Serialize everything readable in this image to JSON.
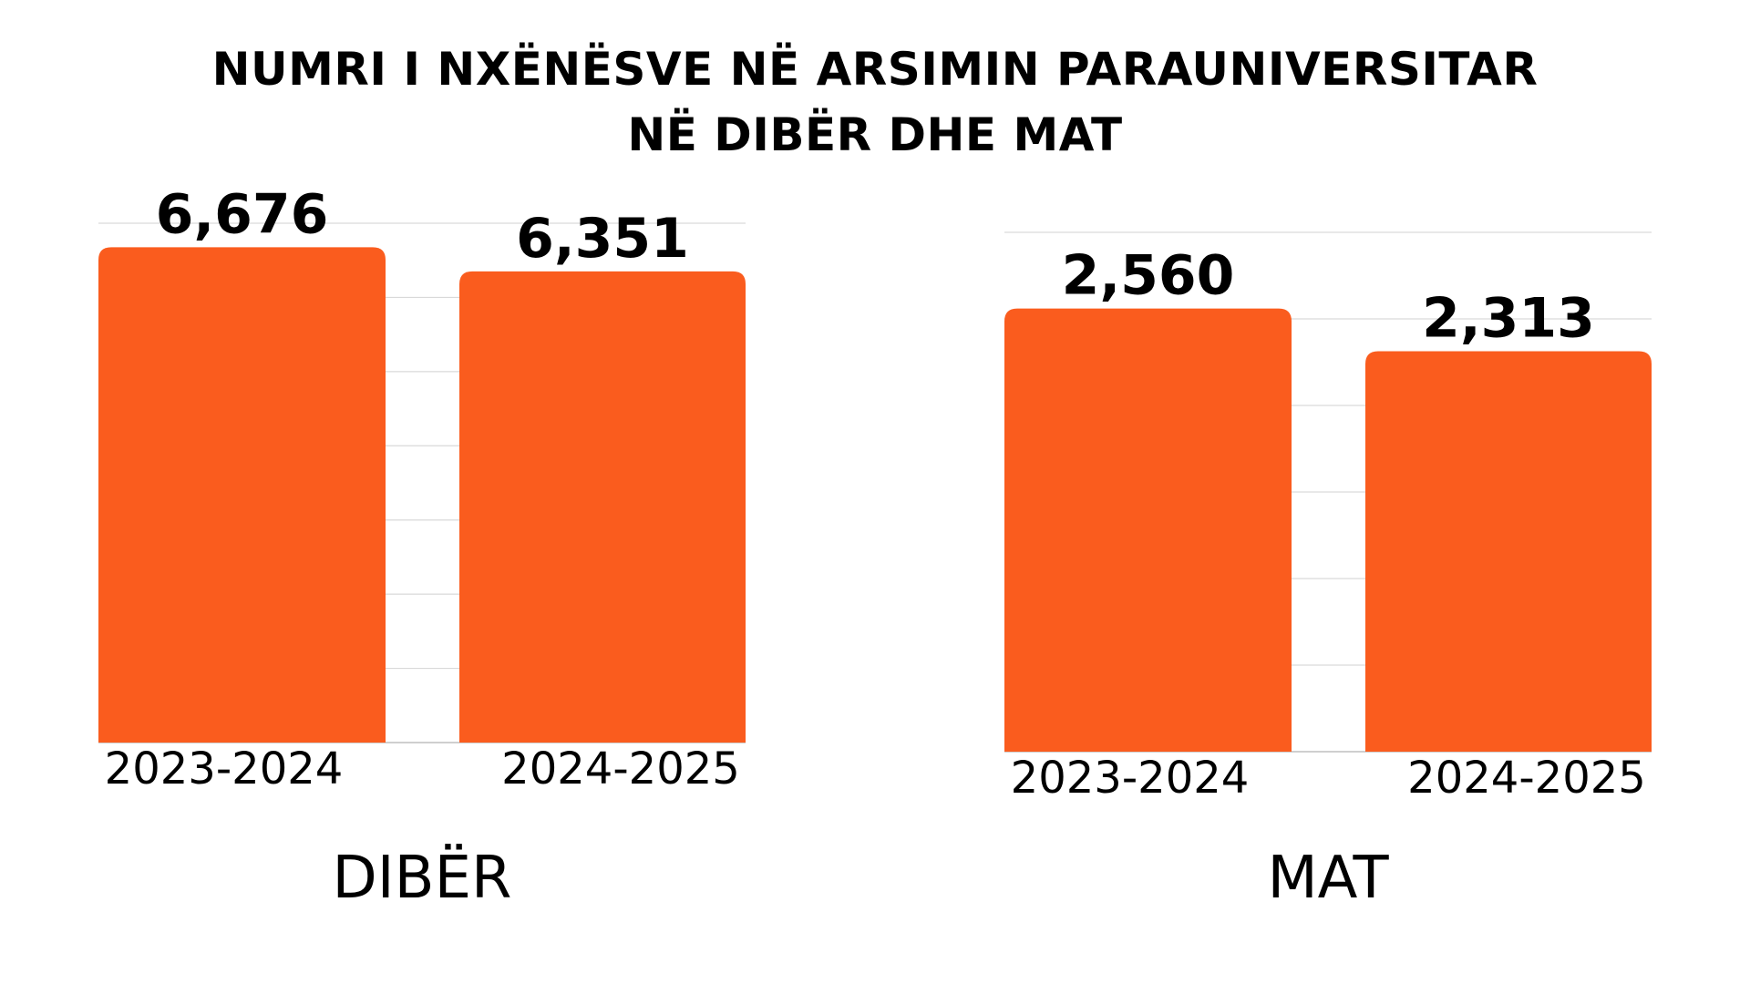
{
  "title_line1": "NUMRI I NXËNËSVE NË ARSIMIN PARAUNIVERSITAR",
  "title_line2": "NË DIBËR DHE MAT",
  "colors": {
    "bar": "#FA5C1E",
    "grid": "#d9d9d9",
    "text": "#000000"
  },
  "chart_data": [
    {
      "type": "bar",
      "title": "DIBËR",
      "categories": [
        "2023-2024",
        "2024-2025"
      ],
      "values": [
        6676,
        6351
      ],
      "value_labels": [
        "6,676",
        "6,351"
      ],
      "ylim": [
        0,
        7000
      ],
      "grid": true
    },
    {
      "type": "bar",
      "title": "MAT",
      "categories": [
        "2023-2024",
        "2024-2025"
      ],
      "values": [
        2560,
        2313
      ],
      "value_labels": [
        "2,560",
        "2,313"
      ],
      "ylim": [
        0,
        3000
      ],
      "grid": true
    }
  ]
}
